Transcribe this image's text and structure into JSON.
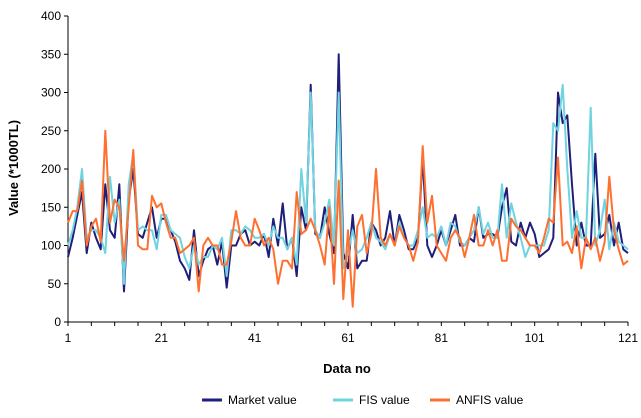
{
  "chart_data": {
    "type": "line",
    "title": "",
    "xlabel": "Data no",
    "ylabel": "Value (*1000TL)",
    "xlim": [
      1,
      121
    ],
    "ylim": [
      0,
      400
    ],
    "x_ticks": [
      1,
      21,
      41,
      61,
      81,
      101,
      121
    ],
    "y_ticks": [
      0,
      50,
      100,
      150,
      200,
      250,
      300,
      350,
      400
    ],
    "grid": false,
    "legend": "bottom",
    "x": [
      1,
      2,
      3,
      4,
      5,
      6,
      7,
      8,
      9,
      10,
      11,
      12,
      13,
      14,
      15,
      16,
      17,
      18,
      19,
      20,
      21,
      22,
      23,
      24,
      25,
      26,
      27,
      28,
      29,
      30,
      31,
      32,
      33,
      34,
      35,
      36,
      37,
      38,
      39,
      40,
      41,
      42,
      43,
      44,
      45,
      46,
      47,
      48,
      49,
      50,
      51,
      52,
      53,
      54,
      55,
      56,
      57,
      58,
      59,
      60,
      61,
      62,
      63,
      64,
      65,
      66,
      67,
      68,
      69,
      70,
      71,
      72,
      73,
      74,
      75,
      76,
      77,
      78,
      79,
      80,
      81,
      82,
      83,
      84,
      85,
      86,
      87,
      88,
      89,
      90,
      91,
      92,
      93,
      94,
      95,
      96,
      97,
      98,
      99,
      100,
      101,
      102,
      103,
      104,
      105,
      106,
      107,
      108,
      109,
      110,
      111,
      112,
      113,
      114,
      115,
      116,
      117,
      118,
      119,
      120,
      121
    ],
    "series": [
      {
        "name": "Market value",
        "color": "#1f1f7a",
        "values": [
          85,
          110,
          140,
          170,
          90,
          130,
          110,
          95,
          180,
          120,
          110,
          180,
          40,
          160,
          200,
          115,
          110,
          130,
          150,
          110,
          135,
          135,
          120,
          105,
          80,
          70,
          55,
          120,
          60,
          80,
          95,
          100,
          75,
          105,
          45,
          100,
          100,
          115,
          120,
          100,
          105,
          100,
          115,
          85,
          135,
          100,
          155,
          95,
          110,
          60,
          150,
          120,
          310,
          115,
          110,
          150,
          115,
          90,
          350,
          90,
          70,
          140,
          70,
          80,
          80,
          130,
          120,
          100,
          110,
          145,
          100,
          140,
          120,
          95,
          95,
          110,
          215,
          100,
          85,
          100,
          120,
          100,
          120,
          140,
          100,
          100,
          110,
          105,
          150,
          110,
          115,
          115,
          110,
          150,
          175,
          105,
          100,
          130,
          110,
          130,
          115,
          85,
          90,
          95,
          110,
          300,
          260,
          270,
          180,
          100,
          130,
          100,
          100,
          220,
          110,
          115,
          140,
          100,
          130,
          95,
          90
        ]
      },
      {
        "name": "FIS value",
        "color": "#6fd3e0",
        "values": [
          100,
          120,
          150,
          200,
          110,
          120,
          120,
          110,
          90,
          190,
          130,
          160,
          50,
          180,
          220,
          120,
          125,
          120,
          120,
          95,
          140,
          140,
          120,
          115,
          110,
          85,
          70,
          100,
          75,
          85,
          85,
          100,
          95,
          110,
          60,
          120,
          120,
          115,
          125,
          120,
          110,
          110,
          115,
          100,
          125,
          110,
          110,
          95,
          110,
          75,
          200,
          130,
          300,
          120,
          110,
          130,
          160,
          100,
          300,
          70,
          90,
          120,
          90,
          95,
          110,
          130,
          110,
          105,
          95,
          115,
          100,
          130,
          110,
          100,
          100,
          120,
          150,
          110,
          115,
          110,
          125,
          100,
          130,
          125,
          105,
          100,
          110,
          120,
          150,
          115,
          130,
          110,
          110,
          180,
          110,
          155,
          130,
          110,
          85,
          100,
          100,
          100,
          100,
          120,
          260,
          250,
          310,
          200,
          110,
          145,
          110,
          110,
          280,
          100,
          120,
          160,
          95,
          130,
          105,
          100,
          95
        ]
      },
      {
        "name": "ANFIS value",
        "color": "#ff7030",
        "values": [
          130,
          145,
          145,
          185,
          100,
          125,
          135,
          105,
          250,
          130,
          160,
          150,
          80,
          150,
          225,
          100,
          95,
          95,
          165,
          150,
          155,
          130,
          110,
          110,
          90,
          95,
          100,
          110,
          40,
          100,
          110,
          100,
          100,
          75,
          75,
          105,
          145,
          110,
          100,
          100,
          135,
          120,
          100,
          110,
          95,
          50,
          80,
          80,
          70,
          170,
          115,
          120,
          135,
          120,
          100,
          75,
          150,
          50,
          185,
          30,
          120,
          20,
          125,
          140,
          90,
          115,
          200,
          110,
          100,
          115,
          100,
          125,
          110,
          100,
          80,
          105,
          230,
          130,
          165,
          100,
          90,
          80,
          110,
          120,
          110,
          85,
          110,
          140,
          100,
          100,
          120,
          100,
          120,
          80,
          80,
          135,
          125,
          120,
          110,
          100,
          100,
          90,
          110,
          135,
          130,
          215,
          100,
          105,
          90,
          125,
          70,
          110,
          95,
          110,
          80,
          105,
          190,
          120,
          95,
          75,
          80
        ]
      }
    ]
  }
}
